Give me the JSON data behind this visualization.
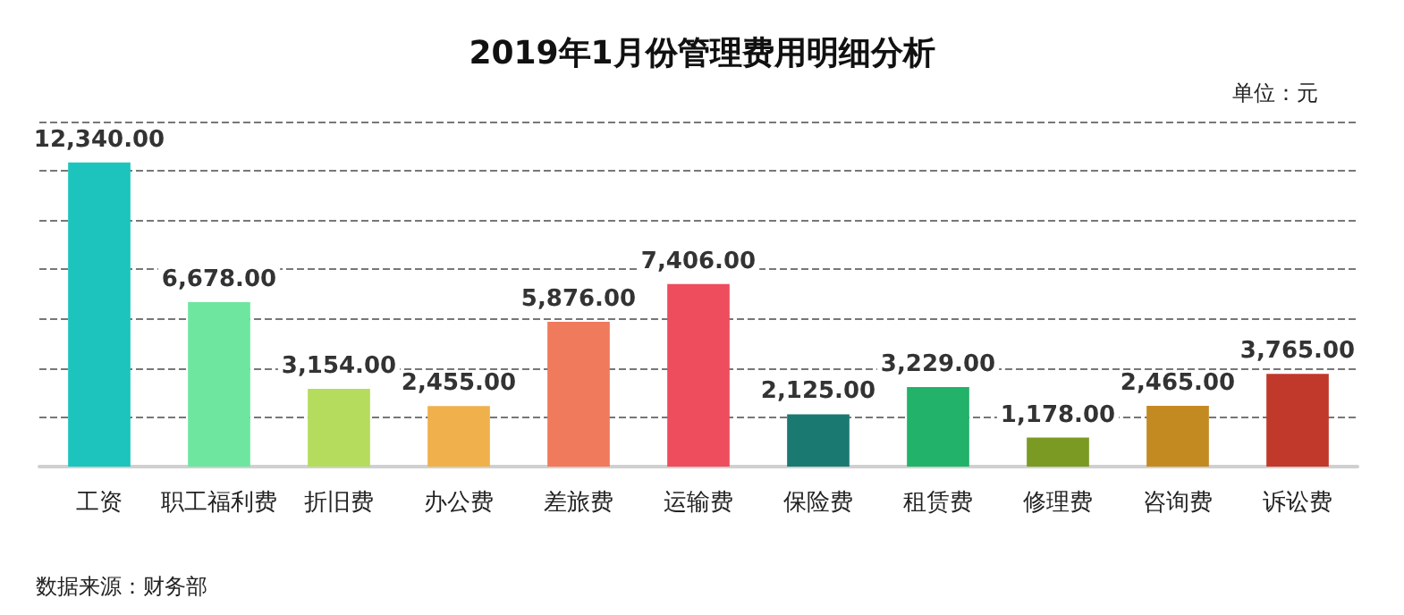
{
  "chart_data": {
    "type": "bar",
    "title": "2019年1月份管理费用明细分析",
    "categories": [
      "工资",
      "职工福利费",
      "折旧费",
      "办公费",
      "差旅费",
      "运输费",
      "保险费",
      "租赁费",
      "修理费",
      "咨询费",
      "诉讼费"
    ],
    "values": [
      12340,
      6678,
      3154,
      2455,
      5876,
      7406,
      2125,
      3229,
      1178,
      2465,
      3765
    ],
    "value_labels": [
      "12,340.00",
      "6,678.00",
      "3,154.00",
      "2,455.00",
      "5,876.00",
      "7,406.00",
      "2,125.00",
      "3,229.00",
      "1,178.00",
      "2,465.00",
      "3,765.00"
    ],
    "colors": [
      "#1cc4bd",
      "#6ee6a0",
      "#b5dc5c",
      "#f0b04c",
      "#f07a5c",
      "#ee4d5e",
      "#1a7a72",
      "#22b26a",
      "#7a9a24",
      "#c48a22",
      "#c0392b"
    ],
    "ylim": [
      0,
      14000
    ],
    "yticks": [
      {
        "value": 0,
        "label": null
      },
      {
        "value": 2000,
        "label": null
      },
      {
        "value": 4000,
        "label": null
      },
      {
        "value": 6000,
        "label": null
      },
      {
        "value": 8000,
        "label": null
      },
      {
        "value": 10000,
        "label": null
      },
      {
        "value": 12000,
        "label": null
      },
      {
        "value": 14000,
        "label": null
      }
    ],
    "tick_labels": "x",
    "grid": "y",
    "annotations": [
      "单位：元",
      "数据来源：财务部"
    ]
  }
}
